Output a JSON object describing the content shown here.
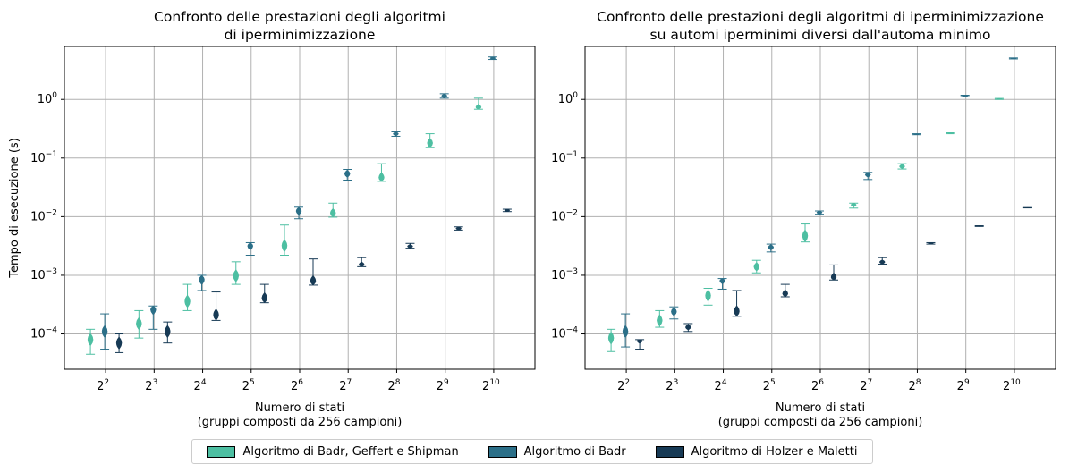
{
  "colors": {
    "bgs": "#4dbfa2",
    "badr": "#2b6f88",
    "holzer": "#173a55",
    "grid": "#b0b0b0"
  },
  "chart_data": [
    {
      "type": "violin",
      "title_line1": "Confronto delle prestazioni degli algoritmi",
      "title_line2": "di iperminimizzazione",
      "xlabel_line1": "Numero di stati",
      "xlabel_line2": "(gruppi composti da 256 campioni)",
      "ylabel": "Tempo di esecuzione (s)",
      "yscale": "log",
      "ylim": [
        2.5e-05,
        8
      ],
      "yticks": [
        {
          "exp": "-4"
        },
        {
          "exp": "-3"
        },
        {
          "exp": "-2"
        },
        {
          "exp": "-1"
        },
        {
          "exp": "0",
          "label": "10"
        }
      ],
      "xticks": [
        {
          "base": "2",
          "exp": "2"
        },
        {
          "base": "2",
          "exp": "3"
        },
        {
          "base": "2",
          "exp": "4"
        },
        {
          "base": "2",
          "exp": "5"
        },
        {
          "base": "2",
          "exp": "6"
        },
        {
          "base": "2",
          "exp": "7"
        },
        {
          "base": "2",
          "exp": "8"
        },
        {
          "base": "2",
          "exp": "9"
        },
        {
          "base": "2",
          "exp": "10"
        }
      ],
      "grid": true,
      "series": [
        {
          "name": "Algoritmo di Badr, Geffert e Shipman",
          "color": "bgs",
          "stats": [
            [
              4.5e-05,
              8e-05,
              0.00012
            ],
            [
              8.5e-05,
              0.00015,
              0.00025
            ],
            [
              0.00025,
              0.00036,
              0.0007
            ],
            [
              0.0007,
              0.00098,
              0.0017
            ],
            [
              0.0022,
              0.0032,
              0.0072
            ],
            [
              0.0098,
              0.0114,
              0.017
            ],
            [
              0.04,
              0.045,
              0.08
            ],
            [
              0.15,
              0.18,
              0.26
            ],
            [
              0.68,
              0.72,
              1.05
            ]
          ]
        },
        {
          "name": "Algoritmo di Badr",
          "color": "badr",
          "stats": [
            [
              5.5e-05,
              0.00011,
              0.00022
            ],
            [
              0.00012,
              0.00027,
              0.0003
            ],
            [
              0.00055,
              0.00085,
              0.001
            ],
            [
              0.0022,
              0.0032,
              0.0036
            ],
            [
              0.0092,
              0.0125,
              0.0145
            ],
            [
              0.042,
              0.054,
              0.064
            ],
            [
              0.235,
              0.26,
              0.28
            ],
            [
              1.05,
              1.15,
              1.25
            ],
            [
              4.8,
              5.05,
              5.3
            ]
          ]
        },
        {
          "name": "Algoritmo di Holzer e Maletti",
          "color": "holzer",
          "stats": [
            [
              4.8e-05,
              7e-05,
              0.0001
            ],
            [
              7e-05,
              0.00011,
              0.00016
            ],
            [
              0.00017,
              0.00021,
              0.00052
            ],
            [
              0.00034,
              0.0004,
              0.0007
            ],
            [
              0.00068,
              0.00078,
              0.0019
            ],
            [
              0.0014,
              0.0015,
              0.002
            ],
            [
              0.0029,
              0.0031,
              0.0035
            ],
            [
              0.0059,
              0.0063,
              0.0067
            ],
            [
              0.0122,
              0.0128,
              0.0134
            ]
          ]
        }
      ]
    },
    {
      "type": "violin",
      "title_line1": "Confronto delle prestazioni degli algoritmi di iperminimizzazione",
      "title_line2": "su automi iperminimi diversi dall'automa minimo",
      "xlabel_line1": "Numero di stati",
      "xlabel_line2": "(gruppi composti da 256 campioni)",
      "ylabel": "",
      "yscale": "log",
      "ylim": [
        2.5e-05,
        8
      ],
      "yticks": [
        {
          "exp": "-4"
        },
        {
          "exp": "-3"
        },
        {
          "exp": "-2"
        },
        {
          "exp": "-1"
        },
        {
          "exp": "0",
          "label": "10"
        }
      ],
      "xticks": [
        {
          "base": "2",
          "exp": "2"
        },
        {
          "base": "2",
          "exp": "3"
        },
        {
          "base": "2",
          "exp": "4"
        },
        {
          "base": "2",
          "exp": "5"
        },
        {
          "base": "2",
          "exp": "6"
        },
        {
          "base": "2",
          "exp": "7"
        },
        {
          "base": "2",
          "exp": "8"
        },
        {
          "base": "2",
          "exp": "9"
        },
        {
          "base": "2",
          "exp": "10"
        }
      ],
      "grid": true,
      "series": [
        {
          "name": "Algoritmo di Badr, Geffert e Shipman",
          "color": "bgs",
          "stats": [
            [
              5e-05,
              8.5e-05,
              0.00012
            ],
            [
              0.00013,
              0.00017,
              0.00025
            ],
            [
              0.00031,
              0.00045,
              0.0006
            ],
            [
              0.0011,
              0.0014,
              0.0018
            ],
            [
              0.0037,
              0.0047,
              0.0075
            ],
            [
              0.014,
              0.016,
              0.017
            ],
            [
              0.065,
              0.072,
              0.08
            ],
            [
              0.26,
              0.265,
              0.27
            ],
            [
              1.0,
              1.02,
              1.04
            ]
          ]
        },
        {
          "name": "Algoritmo di Badr",
          "color": "badr",
          "stats": [
            [
              6e-05,
              0.00011,
              0.00022
            ],
            [
              0.00018,
              0.00024,
              0.00029
            ],
            [
              0.00058,
              0.00082,
              0.00088
            ],
            [
              0.0025,
              0.003,
              0.0034
            ],
            [
              0.011,
              0.0118,
              0.0125
            ],
            [
              0.043,
              0.052,
              0.057
            ],
            [
              0.25,
              0.255,
              0.26
            ],
            [
              1.12,
              1.15,
              1.18
            ],
            [
              4.9,
              5.0,
              5.1
            ]
          ]
        },
        {
          "name": "Algoritmo di Holzer e Maletti",
          "color": "holzer",
          "stats": [
            [
              5.5e-05,
              7.8e-05,
              8e-05
            ],
            [
              0.00011,
              0.00013,
              0.00015
            ],
            [
              0.0002,
              0.00024,
              0.00055
            ],
            [
              0.00043,
              0.00048,
              0.0007
            ],
            [
              0.00083,
              0.0009,
              0.0015
            ],
            [
              0.00155,
              0.00168,
              0.002
            ],
            [
              0.0034,
              0.0035,
              0.0036
            ],
            [
              0.0068,
              0.0069,
              0.007
            ],
            [
              0.0141,
              0.0142,
              0.0143
            ]
          ]
        }
      ]
    }
  ],
  "legend": {
    "items": [
      {
        "label": "Algoritmo di Badr, Geffert e Shipman",
        "color": "#4dbfa2"
      },
      {
        "label": "Algoritmo di Badr",
        "color": "#2b6f88"
      },
      {
        "label": "Algoritmo di Holzer e Maletti",
        "color": "#173a55"
      }
    ]
  }
}
